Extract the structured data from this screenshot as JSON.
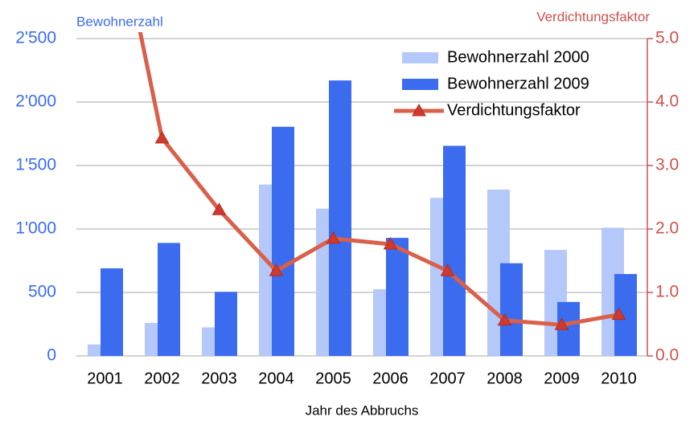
{
  "chart_data": {
    "type": "bar",
    "categories": [
      "2001",
      "2002",
      "2003",
      "2004",
      "2005",
      "2006",
      "2007",
      "2008",
      "2009",
      "2010"
    ],
    "series": [
      {
        "name": "Bewohnerzahl 2000",
        "color": "#b4c8fa",
        "values": [
          90,
          260,
          225,
          1350,
          1160,
          525,
          1245,
          1310,
          835,
          1010
        ]
      },
      {
        "name": "Bewohnerzahl 2009",
        "color": "#3b6cf0",
        "values": [
          690,
          890,
          505,
          1805,
          2170,
          930,
          1655,
          730,
          425,
          645
        ]
      },
      {
        "name": "Verdichtungsfaktor",
        "type": "line",
        "axis": "y2",
        "color": "#d9604a",
        "marker_color": "#d03a2e",
        "values": [
          7.8,
          3.43,
          2.3,
          1.34,
          1.85,
          1.76,
          1.34,
          0.56,
          0.49,
          0.65
        ]
      }
    ],
    "ylabel": "Bewohnerzahl",
    "y2label": "Verdichtungsfaktor",
    "xlabel": "Jahr des Abbruchs",
    "ylim": [
      0,
      2500
    ],
    "yticks": [
      0,
      500,
      {
        "value": 1000,
        "label": "1'000"
      },
      {
        "value": 1500,
        "label": "1'500"
      },
      {
        "value": 2000,
        "label": "2'000"
      },
      {
        "value": 2500,
        "label": "2'500"
      }
    ],
    "y2lim": [
      0,
      5
    ],
    "y2ticks": [
      {
        "value": 0,
        "label": "0.0"
      },
      {
        "value": 1,
        "label": "1.0"
      },
      {
        "value": 2,
        "label": "2.0"
      },
      {
        "value": 3,
        "label": "3.0"
      },
      {
        "value": 4,
        "label": "4.0"
      },
      {
        "value": 5,
        "label": "5.0"
      }
    ],
    "grid": true,
    "legend": "upper right",
    "y_color": "#3b6cf0",
    "y2_color": "#d0504a"
  }
}
